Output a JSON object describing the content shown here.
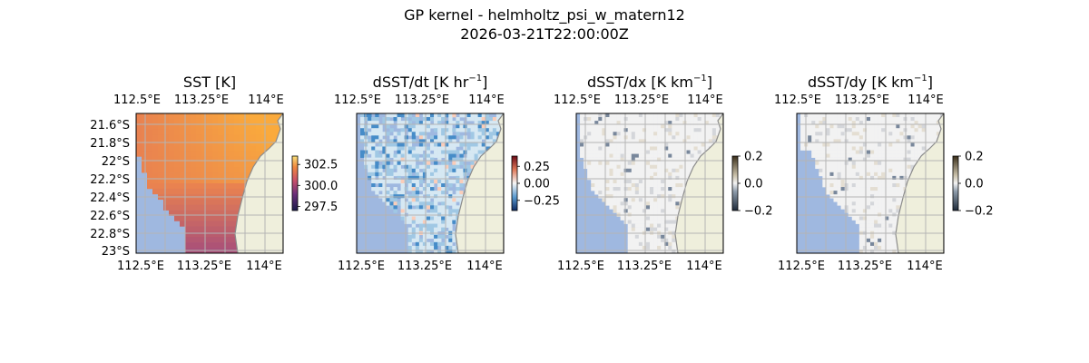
{
  "figure": {
    "title_line1": "GP kernel - helmholtz_psi_w_matern12",
    "title_line2": "2026-03-21T22:00:00Z"
  },
  "colors": {
    "ocean": "#9fb8e0",
    "land": "#efefdc",
    "coast": "#8c8c8c",
    "grid": "#b4b4b4"
  },
  "panels": [
    {
      "key": "sst",
      "title_main": "SST [K]",
      "title_sup": "",
      "title_tail": "",
      "x_ticks_top": [
        "112.5°E",
        "113.25°E",
        "114°E"
      ],
      "x_ticks_bottom": [
        "112.5°E",
        "113.25°E",
        "114°E"
      ],
      "y_ticks": [
        "21.6°S",
        "21.8°S",
        "22°S",
        "22.2°S",
        "22.4°S",
        "22.6°S",
        "22.8°S",
        "23°S"
      ],
      "colorbar": {
        "min": 297.0,
        "max": 303.5,
        "ticks": [
          "302.5",
          "300.0",
          "297.5"
        ],
        "tick_values": [
          302.5,
          300.0,
          297.5
        ],
        "colormap": "plasma-like"
      }
    },
    {
      "key": "dsst_dt",
      "title_main": "dSST/dt [K hr",
      "title_sup": "−1",
      "title_tail": "]",
      "x_ticks_top": [
        "112.5°E",
        "113.25°E",
        "114°E"
      ],
      "x_ticks_bottom": [
        "112.5°E",
        "113.25°E",
        "114°E"
      ],
      "y_ticks": [],
      "colorbar": {
        "min": -0.4,
        "max": 0.4,
        "ticks": [
          "0.25",
          "0.00",
          "−0.25"
        ],
        "tick_values": [
          0.25,
          0.0,
          -0.25
        ],
        "colormap": "RdBu_r"
      }
    },
    {
      "key": "dsst_dx",
      "title_main": "dSST/dx [K km",
      "title_sup": "−1",
      "title_tail": "]",
      "x_ticks_top": [
        "112.5°E",
        "113.25°E",
        "114°E"
      ],
      "x_ticks_bottom": [
        "112.5°E",
        "113.25°E",
        "114°E"
      ],
      "y_ticks": [],
      "colorbar": {
        "min": -0.2,
        "max": 0.2,
        "ticks": [
          "0.2",
          "0.0",
          "−0.2"
        ],
        "tick_values": [
          0.2,
          0.0,
          -0.2
        ],
        "colormap": "diverging-gray"
      }
    },
    {
      "key": "dsst_dy",
      "title_main": "dSST/dy [K km",
      "title_sup": "−1",
      "title_tail": "]",
      "x_ticks_top": [
        "112.5°E",
        "113.25°E",
        "114°E"
      ],
      "x_ticks_bottom": [
        "112.5°E",
        "113.25°E",
        "114°E"
      ],
      "y_ticks": [],
      "colorbar": {
        "min": -0.2,
        "max": 0.2,
        "ticks": [
          "0.2",
          "0.0",
          "−0.2"
        ],
        "tick_values": [
          0.2,
          0.0,
          -0.2
        ],
        "colormap": "diverging-gray"
      }
    }
  ]
}
